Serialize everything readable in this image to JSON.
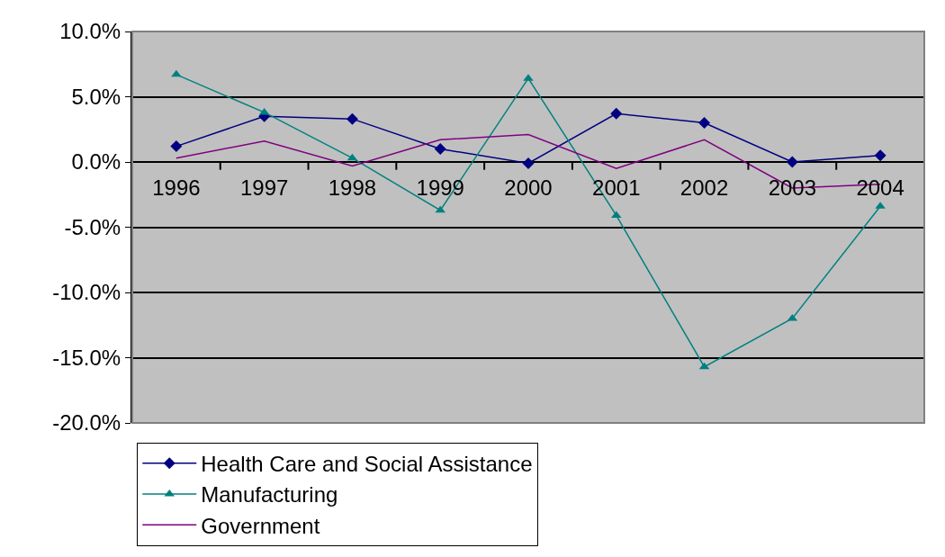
{
  "chart_data": {
    "type": "line",
    "categories": [
      "1996",
      "1997",
      "1998",
      "1999",
      "2000",
      "2001",
      "2002",
      "2003",
      "2004"
    ],
    "series": [
      {
        "name": "Health Care and Social Assistance",
        "color": "#000080",
        "marker": "diamond",
        "values": [
          1.2,
          3.5,
          3.3,
          1.0,
          -0.1,
          3.7,
          3.0,
          0.0,
          0.5
        ]
      },
      {
        "name": "Manufacturing",
        "color": "#008080",
        "marker": "triangle",
        "values": [
          6.7,
          3.8,
          0.3,
          -3.7,
          6.4,
          -4.1,
          -15.7,
          -12.0,
          -3.4
        ]
      },
      {
        "name": "Government",
        "color": "#800080",
        "marker": "none",
        "values": [
          0.3,
          1.6,
          -0.3,
          1.7,
          2.1,
          -0.5,
          1.7,
          -2.0,
          -1.7
        ]
      }
    ],
    "ylim": [
      -20,
      10
    ],
    "yticks": [
      {
        "value": -20,
        "label": "-20.0%"
      },
      {
        "value": -15,
        "label": "-15.0%"
      },
      {
        "value": -10,
        "label": "-10.0%"
      },
      {
        "value": -5,
        "label": "-5.0%"
      },
      {
        "value": 0,
        "label": "0.0%"
      },
      {
        "value": 5,
        "label": "5.0%"
      },
      {
        "value": 10,
        "label": "10.0%"
      }
    ],
    "grid": "y",
    "legend": "bottom",
    "line_style": "solid"
  }
}
